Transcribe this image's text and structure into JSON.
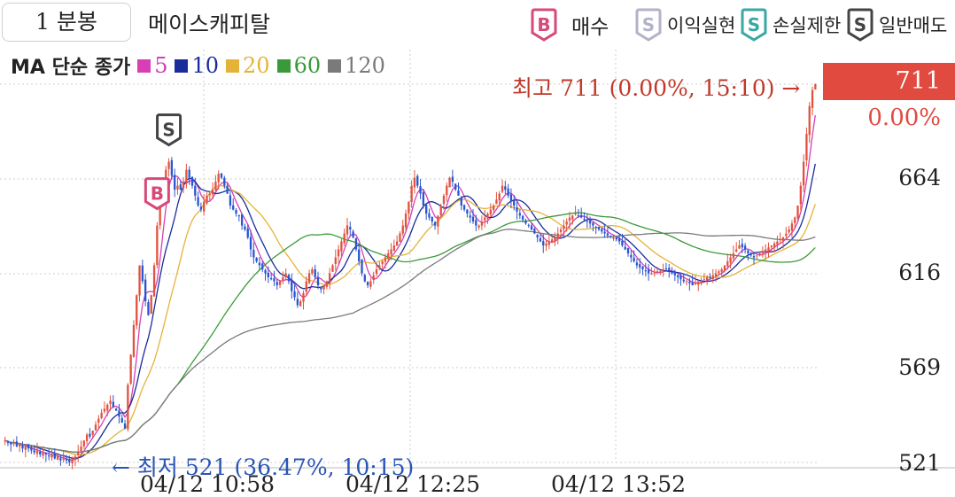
{
  "header": {
    "period_label": "1 분봉",
    "stock_name": "메이스캐피탈",
    "legend_signals": [
      {
        "letter": "B",
        "label": "매수",
        "color": "#d6497a",
        "icon": "buy-badge-icon"
      },
      {
        "letter": "S",
        "label": "이익실현",
        "color": "#b3b3c8",
        "icon": "profit-take-badge-icon"
      },
      {
        "letter": "S",
        "label": "손실제한",
        "color": "#3aa7a3",
        "icon": "stop-loss-badge-icon"
      },
      {
        "letter": "S",
        "label": "일반매도",
        "color": "#444444",
        "icon": "normal-sell-badge-icon"
      }
    ]
  },
  "ma_legend": {
    "title": "MA 단순 종가",
    "items": [
      {
        "label": "5",
        "color": "#d63fb6"
      },
      {
        "label": "10",
        "color": "#1a2c9c"
      },
      {
        "label": "20",
        "color": "#e5b337"
      },
      {
        "label": "60",
        "color": "#3a9a3a"
      },
      {
        "label": "120",
        "color": "#7a7a7a"
      }
    ]
  },
  "current_price": {
    "value": "711",
    "change_pct": "0.00%"
  },
  "chart_data": {
    "type": "candlestick",
    "x_ticks": [
      "04/12 10:58",
      "04/12 12:25",
      "04/12 13:52"
    ],
    "y_ticks": [
      "521",
      "569",
      "616",
      "664",
      "711"
    ],
    "ylim": [
      514,
      716
    ],
    "grid": true,
    "high_annotation": "최고 711 (0.00%, 15:10) →",
    "low_annotation": "← 최저 521 (36.47%, 10:15)",
    "up_color": "#e0533f",
    "down_color": "#2a55d0",
    "signals_on_chart": [
      {
        "type": "B",
        "index": 52
      },
      {
        "type": "S",
        "index": 56
      }
    ],
    "close": [
      532,
      531,
      530,
      531,
      529,
      530,
      528,
      529,
      528,
      527,
      526,
      527,
      525,
      526,
      525,
      524,
      525,
      523,
      524,
      522,
      523,
      522,
      521,
      523,
      524,
      526,
      529,
      532,
      535,
      534,
      537,
      540,
      543,
      546,
      548,
      550,
      552,
      549,
      547,
      544,
      541,
      538,
      560,
      575,
      590,
      605,
      620,
      612,
      602,
      595,
      605,
      620,
      640,
      655,
      662,
      668,
      672,
      665,
      658,
      660,
      658,
      662,
      668,
      664,
      660,
      655,
      650,
      648,
      652,
      655,
      656,
      658,
      662,
      666,
      664,
      660,
      656,
      650,
      648,
      646,
      645,
      640,
      638,
      634,
      628,
      624,
      622,
      620,
      618,
      616,
      614,
      613,
      612,
      610,
      612,
      614,
      616,
      612,
      607,
      604,
      600,
      602,
      606,
      612,
      616,
      618,
      614,
      610,
      608,
      610,
      612,
      616,
      620,
      624,
      628,
      632,
      636,
      640,
      638,
      634,
      628,
      622,
      616,
      612,
      610,
      612,
      615,
      618,
      620,
      622,
      624,
      626,
      628,
      630,
      632,
      636,
      640,
      646,
      652,
      660,
      664,
      660,
      656,
      650,
      646,
      644,
      642,
      640,
      645,
      650,
      655,
      660,
      664,
      662,
      658,
      655,
      650,
      648,
      646,
      644,
      642,
      640,
      640,
      642,
      644,
      646,
      648,
      650,
      653,
      656,
      660,
      658,
      655,
      652,
      650,
      647,
      645,
      643,
      641,
      640,
      638,
      636,
      634,
      632,
      630,
      631,
      632,
      633,
      634,
      636,
      638,
      640,
      642,
      644,
      645,
      646,
      645,
      644,
      643,
      642,
      641,
      640,
      639,
      638,
      637,
      636,
      635,
      634,
      634,
      633,
      632,
      630,
      628,
      626,
      624,
      622,
      620,
      619,
      618,
      617,
      616,
      616,
      616,
      617,
      617,
      618,
      618,
      617,
      616,
      615,
      614,
      613,
      612,
      612,
      611,
      610,
      611,
      612,
      612,
      613,
      614,
      614,
      615,
      616,
      617,
      618,
      620,
      622,
      624,
      626,
      628,
      630,
      629,
      628,
      626,
      625,
      624,
      625,
      626,
      627,
      628,
      629,
      630,
      631,
      632,
      633,
      634,
      636,
      638,
      641,
      644,
      650,
      660,
      672,
      686,
      700,
      708,
      711
    ]
  }
}
